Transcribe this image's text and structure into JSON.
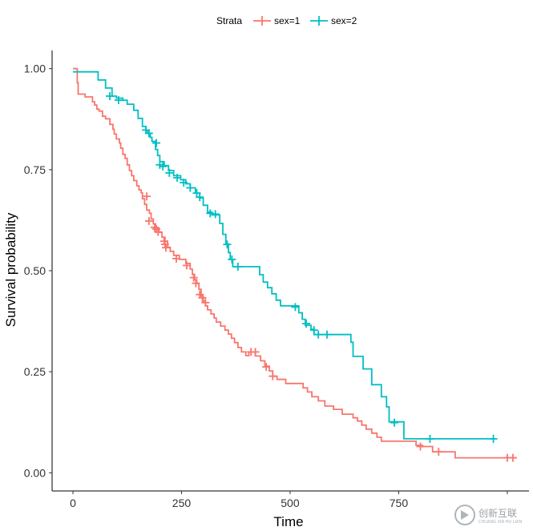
{
  "chart_data": {
    "type": "line",
    "subtype": "kaplan-meier step curve",
    "xlabel": "Time",
    "ylabel": "Survival probability",
    "xlim": [
      -48,
      1050
    ],
    "ylim": [
      -0.045,
      1.045
    ],
    "x_ticks": [
      0,
      250,
      500,
      750,
      1000
    ],
    "x_tick_labels": [
      "0",
      "250",
      "500",
      "750",
      ""
    ],
    "y_ticks": [
      0,
      0.25,
      0.5,
      0.75,
      1.0
    ],
    "y_tick_labels": [
      "0.00",
      "0.25",
      "0.50",
      "0.75",
      "1.00"
    ],
    "grid": false,
    "legend": {
      "position": "top",
      "title": "Strata",
      "entries": [
        "sex=1",
        "sex=2"
      ]
    },
    "series": [
      {
        "name": "sex=1",
        "color": "#F8766D",
        "steps": [
          [
            0,
            1.0
          ],
          [
            10,
            0.965
          ],
          [
            12,
            0.937
          ],
          [
            28,
            0.93
          ],
          [
            45,
            0.918
          ],
          [
            50,
            0.91
          ],
          [
            55,
            0.9
          ],
          [
            60,
            0.895
          ],
          [
            68,
            0.882
          ],
          [
            75,
            0.876
          ],
          [
            85,
            0.862
          ],
          [
            92,
            0.85
          ],
          [
            95,
            0.838
          ],
          [
            100,
            0.826
          ],
          [
            107,
            0.816
          ],
          [
            110,
            0.803
          ],
          [
            115,
            0.788
          ],
          [
            120,
            0.778
          ],
          [
            125,
            0.762
          ],
          [
            130,
            0.748
          ],
          [
            135,
            0.735
          ],
          [
            140,
            0.723
          ],
          [
            147,
            0.71
          ],
          [
            152,
            0.7
          ],
          [
            157,
            0.693
          ],
          [
            160,
            0.678
          ],
          [
            165,
            0.664
          ],
          [
            170,
            0.65
          ],
          [
            176,
            0.642
          ],
          [
            180,
            0.628
          ],
          [
            185,
            0.616
          ],
          [
            190,
            0.606
          ],
          [
            198,
            0.595
          ],
          [
            205,
            0.583
          ],
          [
            212,
            0.573
          ],
          [
            218,
            0.558
          ],
          [
            224,
            0.548
          ],
          [
            232,
            0.538
          ],
          [
            245,
            0.528
          ],
          [
            260,
            0.518
          ],
          [
            270,
            0.504
          ],
          [
            275,
            0.491
          ],
          [
            280,
            0.478
          ],
          [
            285,
            0.468
          ],
          [
            290,
            0.454
          ],
          [
            295,
            0.437
          ],
          [
            300,
            0.424
          ],
          [
            305,
            0.413
          ],
          [
            310,
            0.403
          ],
          [
            318,
            0.393
          ],
          [
            325,
            0.383
          ],
          [
            330,
            0.373
          ],
          [
            340,
            0.363
          ],
          [
            350,
            0.353
          ],
          [
            358,
            0.343
          ],
          [
            365,
            0.333
          ],
          [
            372,
            0.322
          ],
          [
            380,
            0.31
          ],
          [
            388,
            0.299
          ],
          [
            398,
            0.29
          ],
          [
            405,
            0.299
          ],
          [
            420,
            0.289
          ],
          [
            432,
            0.277
          ],
          [
            442,
            0.264
          ],
          [
            452,
            0.252
          ],
          [
            460,
            0.239
          ],
          [
            470,
            0.231
          ],
          [
            490,
            0.221
          ],
          [
            530,
            0.21
          ],
          [
            540,
            0.2
          ],
          [
            550,
            0.188
          ],
          [
            565,
            0.178
          ],
          [
            580,
            0.165
          ],
          [
            600,
            0.157
          ],
          [
            620,
            0.145
          ],
          [
            645,
            0.136
          ],
          [
            655,
            0.128
          ],
          [
            665,
            0.118
          ],
          [
            675,
            0.108
          ],
          [
            688,
            0.098
          ],
          [
            700,
            0.088
          ],
          [
            710,
            0.078
          ],
          [
            765,
            0.078
          ],
          [
            790,
            0.068
          ],
          [
            805,
            0.065
          ],
          [
            828,
            0.052
          ],
          [
            880,
            0.037
          ],
          [
            1020,
            0.037
          ]
        ],
        "censored": [
          [
            170,
            0.684
          ],
          [
            175,
            0.623
          ],
          [
            188,
            0.607
          ],
          [
            192,
            0.603
          ],
          [
            196,
            0.596
          ],
          [
            210,
            0.573
          ],
          [
            212,
            0.565
          ],
          [
            214,
            0.557
          ],
          [
            238,
            0.53
          ],
          [
            262,
            0.513
          ],
          [
            278,
            0.483
          ],
          [
            283,
            0.469
          ],
          [
            292,
            0.441
          ],
          [
            298,
            0.433
          ],
          [
            305,
            0.421
          ],
          [
            410,
            0.299
          ],
          [
            420,
            0.299
          ],
          [
            445,
            0.262
          ],
          [
            460,
            0.239
          ],
          [
            800,
            0.065
          ],
          [
            842,
            0.052
          ],
          [
            1000,
            0.037
          ],
          [
            1013,
            0.037
          ]
        ]
      },
      {
        "name": "sex=2",
        "color": "#00BFC4",
        "steps": [
          [
            0,
            0.992
          ],
          [
            58,
            0.972
          ],
          [
            75,
            0.952
          ],
          [
            90,
            0.932
          ],
          [
            100,
            0.927
          ],
          [
            115,
            0.922
          ],
          [
            125,
            0.912
          ],
          [
            140,
            0.897
          ],
          [
            150,
            0.877
          ],
          [
            160,
            0.857
          ],
          [
            168,
            0.848
          ],
          [
            172,
            0.84
          ],
          [
            178,
            0.83
          ],
          [
            182,
            0.82
          ],
          [
            190,
            0.8
          ],
          [
            195,
            0.785
          ],
          [
            200,
            0.77
          ],
          [
            210,
            0.76
          ],
          [
            220,
            0.748
          ],
          [
            232,
            0.735
          ],
          [
            248,
            0.725
          ],
          [
            260,
            0.715
          ],
          [
            270,
            0.705
          ],
          [
            282,
            0.692
          ],
          [
            292,
            0.68
          ],
          [
            300,
            0.662
          ],
          [
            310,
            0.645
          ],
          [
            320,
            0.638
          ],
          [
            338,
            0.617
          ],
          [
            345,
            0.59
          ],
          [
            352,
            0.566
          ],
          [
            358,
            0.545
          ],
          [
            362,
            0.528
          ],
          [
            368,
            0.51
          ],
          [
            430,
            0.49
          ],
          [
            438,
            0.472
          ],
          [
            448,
            0.458
          ],
          [
            458,
            0.443
          ],
          [
            468,
            0.427
          ],
          [
            478,
            0.413
          ],
          [
            520,
            0.396
          ],
          [
            528,
            0.38
          ],
          [
            535,
            0.365
          ],
          [
            548,
            0.355
          ],
          [
            555,
            0.342
          ],
          [
            640,
            0.323
          ],
          [
            645,
            0.288
          ],
          [
            668,
            0.257
          ],
          [
            688,
            0.218
          ],
          [
            710,
            0.188
          ],
          [
            722,
            0.163
          ],
          [
            728,
            0.126
          ],
          [
            762,
            0.084
          ],
          [
            968,
            0.084
          ]
        ],
        "censored": [
          [
            85,
            0.932
          ],
          [
            105,
            0.922
          ],
          [
            168,
            0.848
          ],
          [
            175,
            0.84
          ],
          [
            192,
            0.816
          ],
          [
            200,
            0.762
          ],
          [
            207,
            0.758
          ],
          [
            222,
            0.742
          ],
          [
            240,
            0.73
          ],
          [
            255,
            0.718
          ],
          [
            270,
            0.705
          ],
          [
            285,
            0.692
          ],
          [
            292,
            0.682
          ],
          [
            316,
            0.642
          ],
          [
            328,
            0.64
          ],
          [
            355,
            0.565
          ],
          [
            366,
            0.528
          ],
          [
            380,
            0.51
          ],
          [
            512,
            0.41
          ],
          [
            537,
            0.369
          ],
          [
            555,
            0.353
          ],
          [
            565,
            0.342
          ],
          [
            585,
            0.342
          ],
          [
            740,
            0.124
          ],
          [
            822,
            0.084
          ],
          [
            968,
            0.084
          ]
        ]
      }
    ]
  },
  "watermark": {
    "brand_cn": "创新互联",
    "brand_en": "CHUANG XIN HU LIAN"
  }
}
